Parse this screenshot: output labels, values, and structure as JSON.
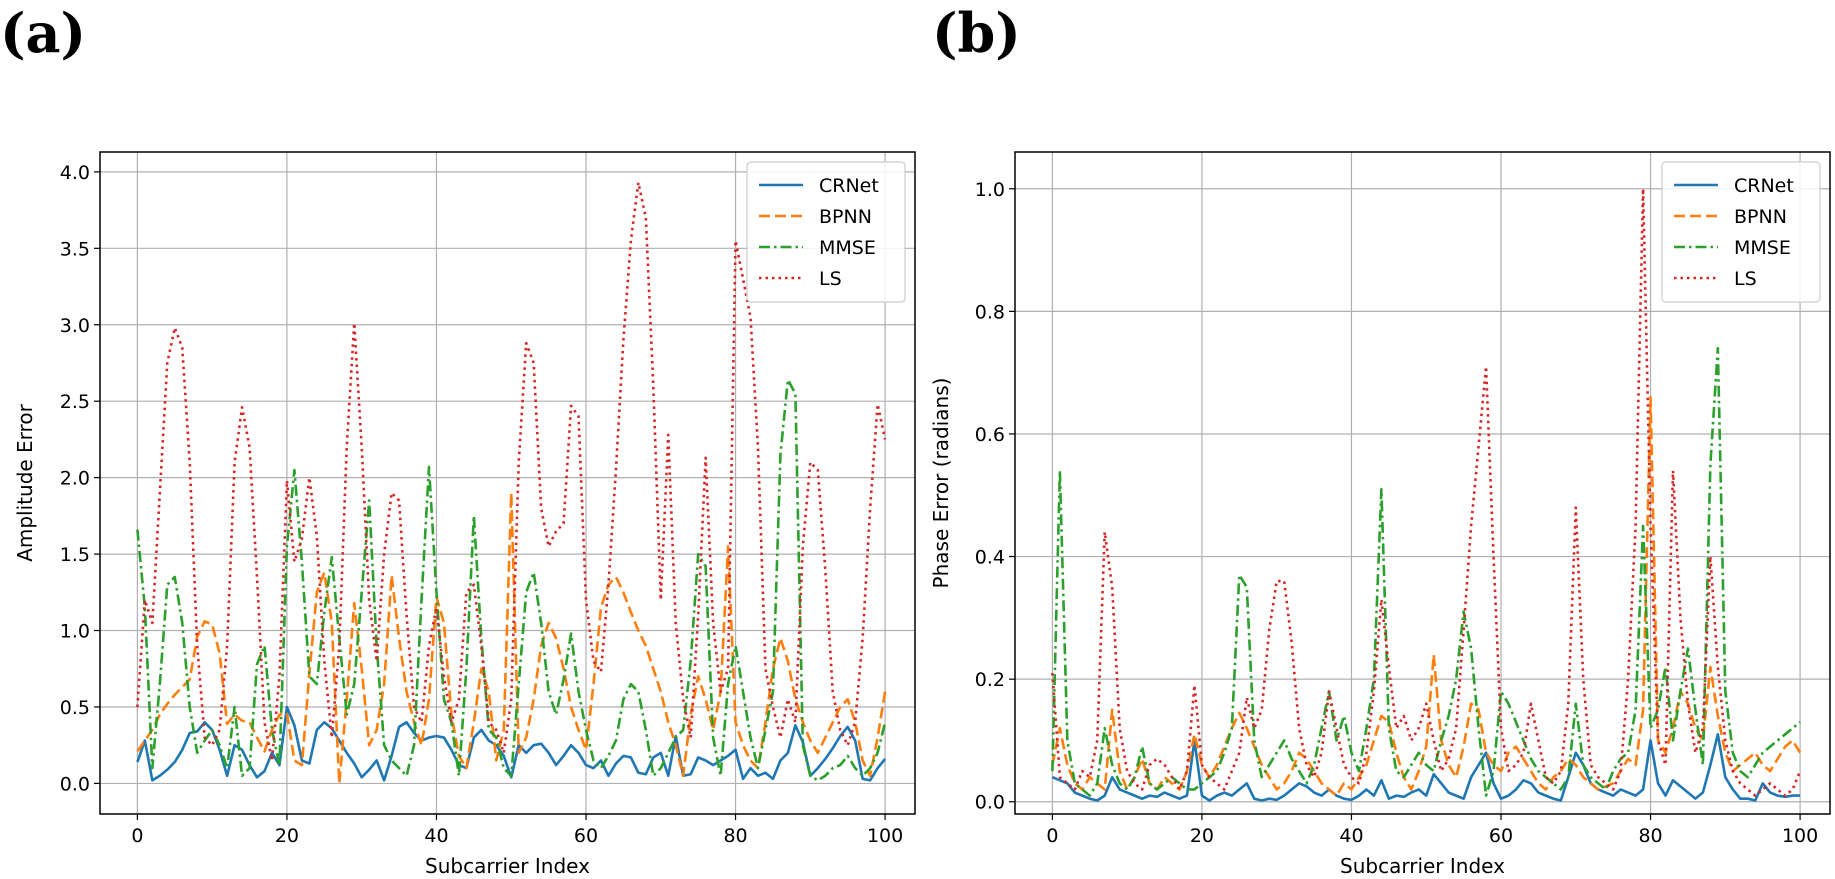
{
  "figure": {
    "panels": [
      "(a)",
      "(b)"
    ]
  },
  "chart_data": [
    {
      "panel": "(a)",
      "type": "line",
      "xlabel": "Subcarrier Index",
      "ylabel": "Amplitude Error",
      "xlim": [
        -5,
        104
      ],
      "ylim": [
        -0.2,
        4.13
      ],
      "xticks": [
        0,
        20,
        40,
        60,
        80,
        100
      ],
      "yticks": [
        0.0,
        0.5,
        1.0,
        1.5,
        2.0,
        2.5,
        3.0,
        3.5,
        4.0
      ],
      "ytick_labels": [
        "0.0",
        "0.5",
        "1.0",
        "1.5",
        "2.0",
        "2.5",
        "3.0",
        "3.5",
        "4.0"
      ],
      "xtick_labels": [
        "0",
        "20",
        "40",
        "60",
        "80",
        "100"
      ],
      "grid": true,
      "legend": "top-right",
      "series": [
        {
          "name": "CRNet",
          "color": "#1f77b4",
          "style": "solid",
          "x_start": 0,
          "values": [
            0.14,
            0.28,
            0.02,
            0.05,
            0.09,
            0.14,
            0.22,
            0.33,
            0.34,
            0.4,
            0.35,
            0.22,
            0.05,
            0.25,
            0.22,
            0.12,
            0.04,
            0.08,
            0.2,
            0.12,
            0.5,
            0.38,
            0.15,
            0.13,
            0.35,
            0.4,
            0.36,
            0.28,
            0.2,
            0.13,
            0.04,
            0.09,
            0.15,
            0.02,
            0.18,
            0.37,
            0.4,
            0.33,
            0.28,
            0.3,
            0.31,
            0.3,
            0.22,
            0.12,
            0.1,
            0.3,
            0.35,
            0.28,
            0.25,
            0.18,
            0.04,
            0.25,
            0.2,
            0.25,
            0.26,
            0.2,
            0.12,
            0.18,
            0.25,
            0.2,
            0.12,
            0.1,
            0.15,
            0.05,
            0.13,
            0.18,
            0.17,
            0.07,
            0.06,
            0.17,
            0.2,
            0.05,
            0.31,
            0.05,
            0.06,
            0.17,
            0.15,
            0.12,
            0.15,
            0.18,
            0.22,
            0.03,
            0.1,
            0.05,
            0.07,
            0.03,
            0.15,
            0.2,
            0.38,
            0.27,
            0.05,
            0.1,
            0.16,
            0.23,
            0.31,
            0.37,
            0.28,
            0.03,
            0.02,
            0.1,
            0.16
          ]
        },
        {
          "name": "BPNN",
          "color": "#ff7f0e",
          "style": "dashed",
          "x_start": 0,
          "values": [
            0.21,
            0.28,
            0.35,
            0.45,
            0.52,
            0.58,
            0.63,
            0.68,
            0.96,
            1.06,
            1.04,
            0.85,
            0.39,
            0.45,
            0.41,
            0.4,
            0.3,
            0.21,
            0.35,
            0.45,
            0.46,
            0.15,
            0.12,
            0.72,
            1.25,
            1.38,
            1.05,
            0.0,
            0.55,
            1.18,
            0.75,
            0.25,
            0.35,
            0.65,
            1.36,
            0.95,
            0.6,
            0.4,
            0.25,
            0.55,
            1.22,
            1.05,
            0.45,
            0.18,
            0.1,
            0.4,
            0.75,
            0.6,
            0.15,
            0.35,
            1.9,
            0.2,
            0.3,
            0.55,
            0.9,
            1.05,
            0.95,
            0.75,
            0.5,
            0.35,
            0.22,
            0.65,
            1.15,
            1.3,
            1.35,
            1.25,
            1.12,
            1.0,
            0.9,
            0.75,
            0.6,
            0.4,
            0.25,
            0.05,
            0.45,
            0.7,
            0.55,
            0.35,
            0.6,
            1.55,
            0.4,
            0.25,
            0.15,
            0.1,
            0.4,
            0.75,
            0.95,
            0.8,
            0.55,
            0.4,
            0.28,
            0.2,
            0.3,
            0.4,
            0.5,
            0.55,
            0.4,
            0.15,
            0.05,
            0.3,
            0.6
          ]
        },
        {
          "name": "MMSE",
          "color": "#2ca02c",
          "style": "dashdot",
          "x_start": 0,
          "values": [
            1.66,
            1.15,
            0.1,
            0.65,
            1.3,
            1.35,
            1.05,
            0.5,
            0.2,
            0.28,
            0.35,
            0.25,
            0.1,
            0.5,
            0.05,
            0.1,
            0.78,
            0.9,
            0.35,
            0.12,
            1.55,
            2.05,
            1.45,
            0.7,
            0.65,
            1.12,
            1.48,
            0.95,
            0.45,
            0.65,
            1.25,
            1.85,
            0.9,
            0.25,
            0.15,
            0.1,
            0.05,
            0.25,
            1.2,
            2.07,
            1.25,
            0.55,
            0.4,
            0.05,
            0.75,
            1.75,
            0.95,
            0.35,
            0.3,
            0.1,
            0.05,
            0.65,
            1.25,
            1.38,
            1.05,
            0.6,
            0.45,
            0.68,
            0.98,
            0.6,
            0.35,
            0.15,
            0.1,
            0.18,
            0.28,
            0.55,
            0.65,
            0.6,
            0.35,
            0.05,
            0.1,
            0.2,
            0.3,
            0.35,
            0.8,
            1.5,
            1.42,
            0.3,
            0.05,
            0.65,
            0.9,
            0.6,
            0.3,
            0.1,
            0.35,
            0.6,
            2.15,
            2.64,
            2.55,
            0.25,
            0.05,
            0.02,
            0.05,
            0.1,
            0.12,
            0.18,
            0.1,
            0.05,
            0.1,
            0.2,
            0.4
          ]
        },
        {
          "name": "LS",
          "color": "#d62728",
          "style": "dotted",
          "x_start": 0,
          "values": [
            0.5,
            1.2,
            1.05,
            1.9,
            2.75,
            2.98,
            2.85,
            2.1,
            0.9,
            0.3,
            0.25,
            0.35,
            0.9,
            2.1,
            2.46,
            2.2,
            1.35,
            0.4,
            0.15,
            0.7,
            1.98,
            1.45,
            1.6,
            2.0,
            1.62,
            0.8,
            0.3,
            0.9,
            2.2,
            3.01,
            2.2,
            1.2,
            0.8,
            1.5,
            1.9,
            1.85,
            1.1,
            0.5,
            0.4,
            0.9,
            1.15,
            0.7,
            0.4,
            0.55,
            1.25,
            1.3,
            0.9,
            0.4,
            0.35,
            0.2,
            0.55,
            2.1,
            2.88,
            2.75,
            1.8,
            1.55,
            1.65,
            1.7,
            2.47,
            2.4,
            1.2,
            0.8,
            0.73,
            1.3,
            2.05,
            2.9,
            3.55,
            3.93,
            3.7,
            2.6,
            1.2,
            2.28,
            1.05,
            0.55,
            0.3,
            1.1,
            2.13,
            1.05,
            0.6,
            0.75,
            3.55,
            3.3,
            3.05,
            2.2,
            0.75,
            0.5,
            0.3,
            0.55,
            0.4,
            1.55,
            2.1,
            2.05,
            1.4,
            0.6,
            0.35,
            0.25,
            0.4,
            0.95,
            1.8,
            2.48,
            2.25
          ]
        }
      ]
    },
    {
      "panel": "(b)",
      "type": "line",
      "xlabel": "Subcarrier Index",
      "ylabel": "Phase Error (radians)",
      "xlim": [
        -5,
        104
      ],
      "ylim": [
        -0.02,
        1.06
      ],
      "xticks": [
        0,
        20,
        40,
        60,
        80,
        100
      ],
      "yticks": [
        0.0,
        0.2,
        0.4,
        0.6,
        0.8,
        1.0
      ],
      "ytick_labels": [
        "0.0",
        "0.2",
        "0.4",
        "0.6",
        "0.8",
        "1.0"
      ],
      "xtick_labels": [
        "0",
        "20",
        "40",
        "60",
        "80",
        "100"
      ],
      "grid": true,
      "legend": "top-right",
      "series": [
        {
          "name": "CRNet",
          "color": "#1f77b4",
          "style": "solid",
          "x_start": 0,
          "values": [
            0.04,
            0.035,
            0.03,
            0.015,
            0.01,
            0.005,
            0.002,
            0.01,
            0.04,
            0.02,
            0.015,
            0.01,
            0.005,
            0.01,
            0.008,
            0.015,
            0.01,
            0.005,
            0.01,
            0.1,
            0.01,
            0.002,
            0.01,
            0.015,
            0.01,
            0.02,
            0.03,
            0.005,
            0.002,
            0.005,
            0.003,
            0.01,
            0.02,
            0.03,
            0.025,
            0.015,
            0.01,
            0.02,
            0.01,
            0.005,
            0.003,
            0.01,
            0.02,
            0.01,
            0.035,
            0.005,
            0.01,
            0.008,
            0.015,
            0.02,
            0.01,
            0.045,
            0.03,
            0.015,
            0.01,
            0.005,
            0.04,
            0.06,
            0.08,
            0.03,
            0.005,
            0.01,
            0.02,
            0.035,
            0.03,
            0.015,
            0.01,
            0.005,
            0.002,
            0.04,
            0.08,
            0.06,
            0.03,
            0.02,
            0.015,
            0.01,
            0.02,
            0.015,
            0.01,
            0.02,
            0.1,
            0.03,
            0.01,
            0.035,
            0.025,
            0.015,
            0.005,
            0.015,
            0.06,
            0.11,
            0.04,
            0.02,
            0.005,
            0.005,
            0.002,
            0.03,
            0.015,
            0.01,
            0.008,
            0.01,
            0.01
          ]
        },
        {
          "name": "BPNN",
          "color": "#ff7f0e",
          "style": "dashed",
          "x_start": 0,
          "values": [
            0.06,
            0.12,
            0.06,
            0.03,
            0.02,
            0.04,
            0.03,
            0.02,
            0.15,
            0.05,
            0.02,
            0.04,
            0.07,
            0.03,
            0.02,
            0.04,
            0.03,
            0.02,
            0.05,
            0.11,
            0.06,
            0.04,
            0.06,
            0.09,
            0.12,
            0.145,
            0.12,
            0.09,
            0.06,
            0.04,
            0.02,
            0.03,
            0.05,
            0.08,
            0.07,
            0.05,
            0.03,
            0.02,
            0.01,
            0.03,
            0.02,
            0.04,
            0.06,
            0.1,
            0.14,
            0.13,
            0.08,
            0.04,
            0.02,
            0.05,
            0.09,
            0.24,
            0.1,
            0.06,
            0.04,
            0.09,
            0.16,
            0.15,
            0.08,
            0.06,
            0.05,
            0.08,
            0.09,
            0.07,
            0.05,
            0.03,
            0.02,
            0.04,
            0.05,
            0.07,
            0.06,
            0.04,
            0.03,
            0.02,
            0.025,
            0.03,
            0.05,
            0.07,
            0.06,
            0.15,
            0.66,
            0.1,
            0.08,
            0.12,
            0.18,
            0.16,
            0.12,
            0.1,
            0.22,
            0.14,
            0.08,
            0.05,
            0.06,
            0.07,
            0.08,
            0.06,
            0.05,
            0.07,
            0.09,
            0.1,
            0.08
          ]
        },
        {
          "name": "MMSE",
          "color": "#2ca02c",
          "style": "dashdot",
          "x_start": 0,
          "values": [
            0.05,
            0.54,
            0.1,
            0.03,
            0.02,
            0.01,
            0.03,
            0.12,
            0.06,
            0.03,
            0.02,
            0.04,
            0.09,
            0.03,
            0.02,
            0.03,
            0.04,
            0.03,
            0.02,
            0.02,
            0.03,
            0.04,
            0.05,
            0.08,
            0.12,
            0.37,
            0.35,
            0.1,
            0.04,
            0.06,
            0.08,
            0.1,
            0.07,
            0.05,
            0.03,
            0.06,
            0.12,
            0.18,
            0.1,
            0.14,
            0.08,
            0.05,
            0.12,
            0.2,
            0.51,
            0.12,
            0.05,
            0.04,
            0.06,
            0.08,
            0.06,
            0.05,
            0.1,
            0.14,
            0.2,
            0.31,
            0.25,
            0.12,
            0.01,
            0.05,
            0.18,
            0.16,
            0.13,
            0.1,
            0.07,
            0.05,
            0.04,
            0.03,
            0.02,
            0.04,
            0.16,
            0.06,
            0.04,
            0.03,
            0.02,
            0.05,
            0.07,
            0.08,
            0.15,
            0.45,
            0.12,
            0.15,
            0.22,
            0.1,
            0.18,
            0.25,
            0.15,
            0.06,
            0.55,
            0.74,
            0.18,
            0.08,
            0.05,
            0.04,
            0.06,
            0.08,
            0.09,
            0.1,
            0.11,
            0.12,
            0.13
          ]
        },
        {
          "name": "LS",
          "color": "#d62728",
          "style": "dotted",
          "x_start": 0,
          "values": [
            0.21,
            0.04,
            0.03,
            0.02,
            0.05,
            0.04,
            0.1,
            0.44,
            0.35,
            0.12,
            0.05,
            0.03,
            0.02,
            0.06,
            0.07,
            0.06,
            0.04,
            0.02,
            0.05,
            0.19,
            0.06,
            0.04,
            0.03,
            0.02,
            0.05,
            0.08,
            0.17,
            0.12,
            0.15,
            0.28,
            0.36,
            0.36,
            0.26,
            0.12,
            0.06,
            0.04,
            0.08,
            0.18,
            0.12,
            0.06,
            0.04,
            0.03,
            0.08,
            0.18,
            0.33,
            0.22,
            0.12,
            0.14,
            0.1,
            0.12,
            0.16,
            0.1,
            0.05,
            0.07,
            0.12,
            0.28,
            0.45,
            0.58,
            0.71,
            0.4,
            0.12,
            0.05,
            0.06,
            0.08,
            0.16,
            0.1,
            0.04,
            0.03,
            0.05,
            0.16,
            0.48,
            0.2,
            0.06,
            0.04,
            0.03,
            0.02,
            0.05,
            0.2,
            0.45,
            1.0,
            0.45,
            0.1,
            0.06,
            0.54,
            0.3,
            0.16,
            0.08,
            0.12,
            0.4,
            0.22,
            0.1,
            0.05,
            0.03,
            0.02,
            0.01,
            0.02,
            0.03,
            0.02,
            0.01,
            0.02,
            0.05
          ]
        }
      ]
    }
  ]
}
